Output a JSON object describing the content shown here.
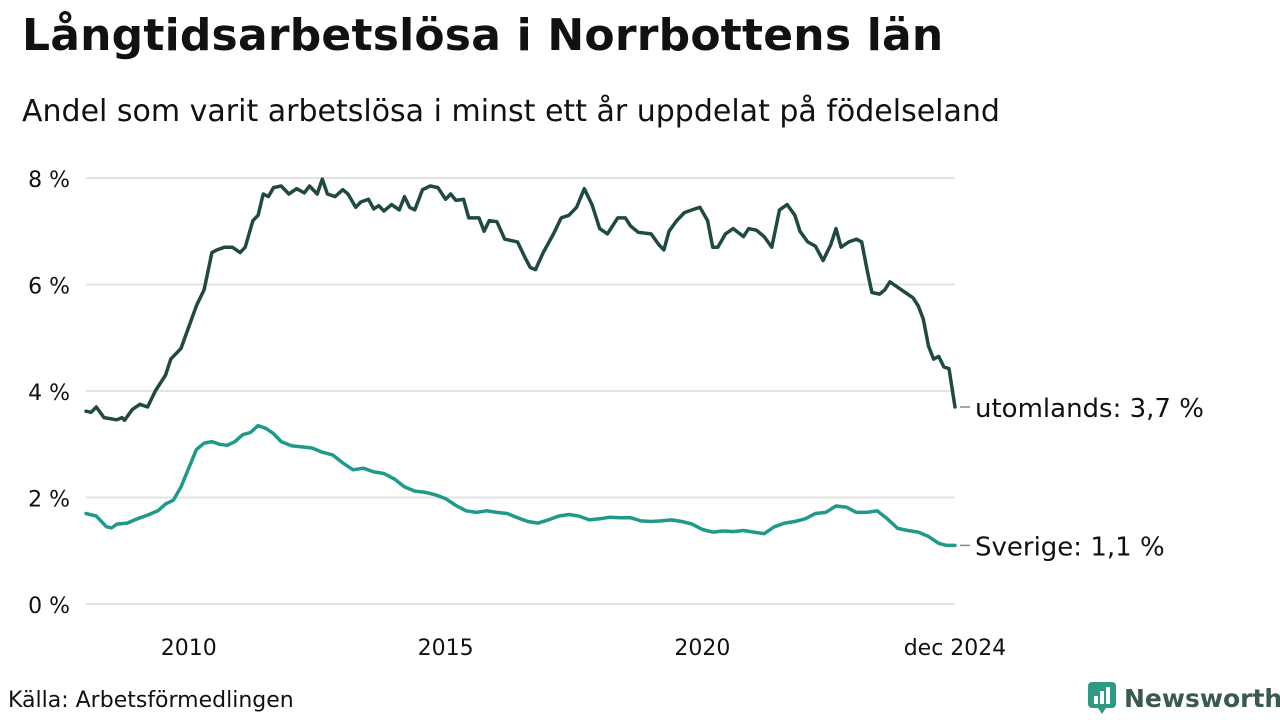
{
  "title": "Långtidsarbetslösa i Norrbottens län",
  "subtitle": "Andel som varit arbetslösa i minst ett år uppdelat på födelseland",
  "source": "Källa: Arbetsförmedlingen",
  "brand": {
    "name": "Newsworthy",
    "color": "#2f9a84",
    "text_color": "#3a5a50"
  },
  "chart_data": {
    "type": "line",
    "title": "Långtidsarbetslösa i Norrbottens län",
    "ylabel": "",
    "xlabel": "",
    "x_range": [
      2008.0,
      2024.917
    ],
    "ylim": [
      0,
      8
    ],
    "y_ticks": [
      0,
      2,
      4,
      6,
      8
    ],
    "y_tick_labels": [
      "0 %",
      "2 %",
      "4 %",
      "6 %",
      "8 %"
    ],
    "x_ticks": [
      2010,
      2015,
      2020,
      2024.917
    ],
    "x_tick_labels": [
      "2010",
      "2015",
      "2020",
      "dec 2024"
    ],
    "grid": true,
    "series": [
      {
        "name": "utomlands",
        "label": "utomlands: 3,7 %",
        "color": "#1f4a44",
        "points": [
          [
            2008.0,
            3.62
          ],
          [
            2008.1,
            3.6
          ],
          [
            2008.2,
            3.7
          ],
          [
            2008.35,
            3.5
          ],
          [
            2008.6,
            3.46
          ],
          [
            2008.7,
            3.5
          ],
          [
            2008.75,
            3.45
          ],
          [
            2008.9,
            3.65
          ],
          [
            2009.05,
            3.75
          ],
          [
            2009.2,
            3.7
          ],
          [
            2009.35,
            4.0
          ],
          [
            2009.55,
            4.3
          ],
          [
            2009.65,
            4.6
          ],
          [
            2009.85,
            4.8
          ],
          [
            2010.0,
            5.2
          ],
          [
            2010.15,
            5.6
          ],
          [
            2010.3,
            5.9
          ],
          [
            2010.45,
            6.6
          ],
          [
            2010.55,
            6.65
          ],
          [
            2010.7,
            6.7
          ],
          [
            2010.85,
            6.7
          ],
          [
            2011.0,
            6.6
          ],
          [
            2011.1,
            6.7
          ],
          [
            2011.25,
            7.2
          ],
          [
            2011.35,
            7.3
          ],
          [
            2011.45,
            7.7
          ],
          [
            2011.55,
            7.65
          ],
          [
            2011.65,
            7.82
          ],
          [
            2011.8,
            7.85
          ],
          [
            2011.95,
            7.7
          ],
          [
            2012.1,
            7.8
          ],
          [
            2012.25,
            7.72
          ],
          [
            2012.35,
            7.85
          ],
          [
            2012.5,
            7.7
          ],
          [
            2012.6,
            7.98
          ],
          [
            2012.7,
            7.7
          ],
          [
            2012.85,
            7.65
          ],
          [
            2013.0,
            7.78
          ],
          [
            2013.1,
            7.7
          ],
          [
            2013.25,
            7.45
          ],
          [
            2013.35,
            7.55
          ],
          [
            2013.5,
            7.6
          ],
          [
            2013.6,
            7.42
          ],
          [
            2013.7,
            7.48
          ],
          [
            2013.8,
            7.38
          ],
          [
            2013.95,
            7.5
          ],
          [
            2014.1,
            7.4
          ],
          [
            2014.2,
            7.65
          ],
          [
            2014.3,
            7.45
          ],
          [
            2014.4,
            7.4
          ],
          [
            2014.55,
            7.78
          ],
          [
            2014.7,
            7.85
          ],
          [
            2014.85,
            7.82
          ],
          [
            2015.0,
            7.6
          ],
          [
            2015.1,
            7.7
          ],
          [
            2015.2,
            7.58
          ],
          [
            2015.35,
            7.6
          ],
          [
            2015.45,
            7.25
          ],
          [
            2015.65,
            7.25
          ],
          [
            2015.75,
            7.0
          ],
          [
            2015.85,
            7.2
          ],
          [
            2016.0,
            7.18
          ],
          [
            2016.15,
            6.85
          ],
          [
            2016.4,
            6.8
          ],
          [
            2016.55,
            6.5
          ],
          [
            2016.65,
            6.32
          ],
          [
            2016.75,
            6.28
          ],
          [
            2016.9,
            6.6
          ],
          [
            2017.1,
            6.95
          ],
          [
            2017.25,
            7.25
          ],
          [
            2017.4,
            7.3
          ],
          [
            2017.55,
            7.45
          ],
          [
            2017.7,
            7.8
          ],
          [
            2017.85,
            7.5
          ],
          [
            2018.0,
            7.05
          ],
          [
            2018.15,
            6.95
          ],
          [
            2018.35,
            7.25
          ],
          [
            2018.5,
            7.25
          ],
          [
            2018.6,
            7.1
          ],
          [
            2018.75,
            6.98
          ],
          [
            2019.0,
            6.95
          ],
          [
            2019.15,
            6.75
          ],
          [
            2019.25,
            6.65
          ],
          [
            2019.35,
            7.0
          ],
          [
            2019.5,
            7.2
          ],
          [
            2019.65,
            7.35
          ],
          [
            2019.8,
            7.4
          ],
          [
            2019.95,
            7.45
          ],
          [
            2020.1,
            7.2
          ],
          [
            2020.2,
            6.7
          ],
          [
            2020.3,
            6.7
          ],
          [
            2020.45,
            6.95
          ],
          [
            2020.6,
            7.05
          ],
          [
            2020.8,
            6.9
          ],
          [
            2020.9,
            7.05
          ],
          [
            2021.05,
            7.02
          ],
          [
            2021.2,
            6.9
          ],
          [
            2021.35,
            6.7
          ],
          [
            2021.5,
            7.4
          ],
          [
            2021.65,
            7.5
          ],
          [
            2021.8,
            7.3
          ],
          [
            2021.9,
            7.0
          ],
          [
            2022.05,
            6.8
          ],
          [
            2022.2,
            6.72
          ],
          [
            2022.35,
            6.45
          ],
          [
            2022.5,
            6.75
          ],
          [
            2022.6,
            7.05
          ],
          [
            2022.7,
            6.7
          ],
          [
            2022.85,
            6.8
          ],
          [
            2023.0,
            6.85
          ],
          [
            2023.1,
            6.8
          ],
          [
            2023.2,
            6.3
          ],
          [
            2023.3,
            5.85
          ],
          [
            2023.45,
            5.82
          ],
          [
            2023.55,
            5.9
          ],
          [
            2023.65,
            6.05
          ],
          [
            2023.8,
            5.95
          ],
          [
            2023.95,
            5.85
          ],
          [
            2024.1,
            5.75
          ],
          [
            2024.2,
            5.6
          ],
          [
            2024.3,
            5.35
          ],
          [
            2024.4,
            4.85
          ],
          [
            2024.5,
            4.6
          ],
          [
            2024.6,
            4.65
          ],
          [
            2024.7,
            4.45
          ],
          [
            2024.8,
            4.42
          ],
          [
            2024.917,
            3.7
          ]
        ]
      },
      {
        "name": "Sverige",
        "label": "Sverige: 1,1 %",
        "color": "#1f9a8a",
        "points": [
          [
            2008.0,
            1.7
          ],
          [
            2008.2,
            1.65
          ],
          [
            2008.4,
            1.45
          ],
          [
            2008.5,
            1.43
          ],
          [
            2008.6,
            1.5
          ],
          [
            2008.8,
            1.52
          ],
          [
            2009.0,
            1.6
          ],
          [
            2009.2,
            1.67
          ],
          [
            2009.4,
            1.75
          ],
          [
            2009.55,
            1.88
          ],
          [
            2009.7,
            1.95
          ],
          [
            2009.85,
            2.2
          ],
          [
            2010.0,
            2.55
          ],
          [
            2010.15,
            2.9
          ],
          [
            2010.3,
            3.02
          ],
          [
            2010.45,
            3.05
          ],
          [
            2010.6,
            3.0
          ],
          [
            2010.75,
            2.98
          ],
          [
            2010.9,
            3.05
          ],
          [
            2011.05,
            3.18
          ],
          [
            2011.2,
            3.22
          ],
          [
            2011.35,
            3.35
          ],
          [
            2011.5,
            3.3
          ],
          [
            2011.65,
            3.2
          ],
          [
            2011.8,
            3.05
          ],
          [
            2012.0,
            2.97
          ],
          [
            2012.2,
            2.95
          ],
          [
            2012.4,
            2.93
          ],
          [
            2012.6,
            2.85
          ],
          [
            2012.8,
            2.8
          ],
          [
            2013.0,
            2.65
          ],
          [
            2013.2,
            2.52
          ],
          [
            2013.4,
            2.55
          ],
          [
            2013.6,
            2.48
          ],
          [
            2013.8,
            2.45
          ],
          [
            2014.0,
            2.35
          ],
          [
            2014.2,
            2.2
          ],
          [
            2014.4,
            2.12
          ],
          [
            2014.6,
            2.1
          ],
          [
            2014.8,
            2.05
          ],
          [
            2015.0,
            1.98
          ],
          [
            2015.2,
            1.85
          ],
          [
            2015.4,
            1.75
          ],
          [
            2015.6,
            1.72
          ],
          [
            2015.8,
            1.75
          ],
          [
            2016.0,
            1.72
          ],
          [
            2016.2,
            1.7
          ],
          [
            2016.4,
            1.62
          ],
          [
            2016.6,
            1.55
          ],
          [
            2016.8,
            1.52
          ],
          [
            2017.0,
            1.58
          ],
          [
            2017.2,
            1.65
          ],
          [
            2017.4,
            1.68
          ],
          [
            2017.6,
            1.65
          ],
          [
            2017.8,
            1.58
          ],
          [
            2018.0,
            1.6
          ],
          [
            2018.2,
            1.63
          ],
          [
            2018.4,
            1.62
          ],
          [
            2018.6,
            1.62
          ],
          [
            2018.8,
            1.56
          ],
          [
            2019.0,
            1.55
          ],
          [
            2019.2,
            1.56
          ],
          [
            2019.4,
            1.58
          ],
          [
            2019.6,
            1.55
          ],
          [
            2019.8,
            1.5
          ],
          [
            2020.0,
            1.4
          ],
          [
            2020.2,
            1.35
          ],
          [
            2020.4,
            1.37
          ],
          [
            2020.6,
            1.36
          ],
          [
            2020.8,
            1.38
          ],
          [
            2021.0,
            1.35
          ],
          [
            2021.2,
            1.32
          ],
          [
            2021.4,
            1.45
          ],
          [
            2021.6,
            1.52
          ],
          [
            2021.8,
            1.55
          ],
          [
            2022.0,
            1.6
          ],
          [
            2022.2,
            1.7
          ],
          [
            2022.4,
            1.72
          ],
          [
            2022.6,
            1.84
          ],
          [
            2022.8,
            1.82
          ],
          [
            2023.0,
            1.72
          ],
          [
            2023.2,
            1.72
          ],
          [
            2023.4,
            1.75
          ],
          [
            2023.6,
            1.6
          ],
          [
            2023.8,
            1.42
          ],
          [
            2024.0,
            1.38
          ],
          [
            2024.2,
            1.35
          ],
          [
            2024.4,
            1.27
          ],
          [
            2024.6,
            1.14
          ],
          [
            2024.75,
            1.1
          ],
          [
            2024.917,
            1.1
          ]
        ]
      }
    ]
  }
}
